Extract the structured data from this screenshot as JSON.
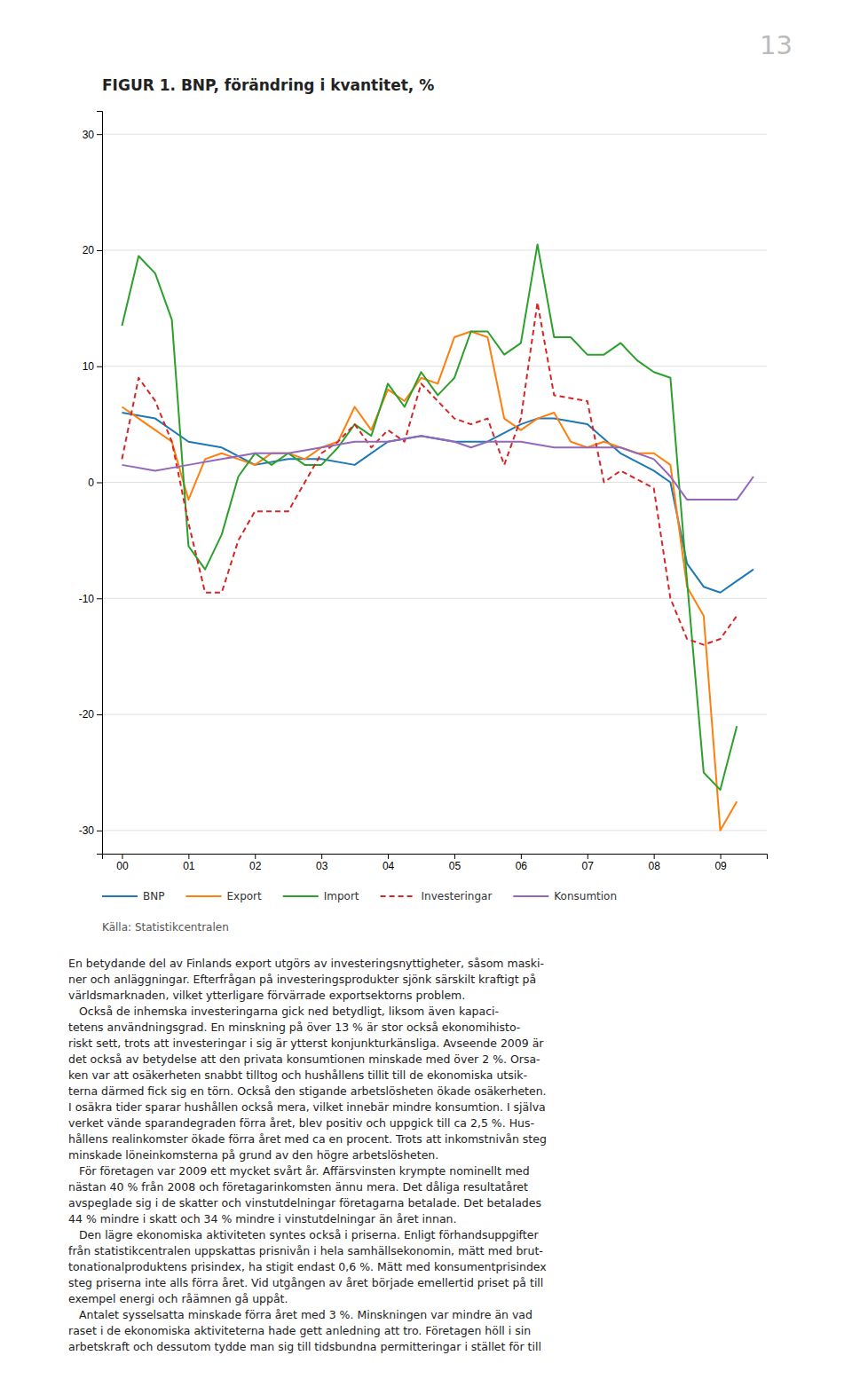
{
  "chart_data": {
    "type": "line",
    "title": "FIGUR 1. BNP, förändring i kvantitet, %",
    "source": "Källa: Statistikcentralen",
    "xlim": [
      -0.3,
      9.7
    ],
    "xticks": [
      {
        "value": 0,
        "label": "00"
      },
      {
        "value": 1,
        "label": "01"
      },
      {
        "value": 2,
        "label": "02"
      },
      {
        "value": 3,
        "label": "03"
      },
      {
        "value": 4,
        "label": "04"
      },
      {
        "value": 5,
        "label": "05"
      },
      {
        "value": 6,
        "label": "06"
      },
      {
        "value": 7,
        "label": "07"
      },
      {
        "value": 8,
        "label": "08"
      },
      {
        "value": 9,
        "label": "09"
      }
    ],
    "ylim": [
      -32,
      32
    ],
    "yticks": [
      -30,
      -20,
      -10,
      0,
      10,
      20,
      30
    ],
    "grid": true,
    "legend": "bottom",
    "series": [
      {
        "name": "BNP",
        "x": [
          0,
          0.5,
          1,
          1.5,
          2,
          2.5,
          3,
          3.5,
          4,
          4.5,
          5,
          5.5,
          6,
          6.25,
          6.5,
          7,
          7.5,
          8,
          8.25,
          8.5,
          8.75,
          9,
          9.25,
          9.5
        ],
        "values": [
          6.0,
          5.5,
          3.5,
          3.0,
          1.5,
          2.0,
          2.0,
          1.5,
          3.5,
          4.0,
          3.5,
          3.5,
          5.0,
          5.5,
          5.5,
          5.0,
          2.5,
          1.0,
          0.0,
          -7.0,
          -9.0,
          -9.5,
          -8.5,
          -7.5
        ]
      },
      {
        "name": "Export",
        "x": [
          0,
          0.25,
          0.5,
          0.75,
          1,
          1.25,
          1.5,
          1.75,
          2,
          2.25,
          2.5,
          2.75,
          3,
          3.25,
          3.5,
          3.75,
          4,
          4.25,
          4.5,
          4.75,
          5,
          5.25,
          5.5,
          5.75,
          6,
          6.25,
          6.5,
          6.75,
          7,
          7.25,
          7.5,
          7.75,
          8,
          8.25,
          8.5,
          8.75,
          9,
          9.25
        ],
        "values": [
          6.5,
          5.5,
          4.5,
          3.5,
          -1.5,
          2.0,
          2.5,
          2.0,
          1.5,
          2.5,
          2.5,
          2.0,
          3.0,
          3.5,
          6.5,
          4.5,
          8.0,
          7.0,
          9.0,
          8.5,
          12.5,
          13.0,
          12.5,
          5.5,
          4.5,
          5.5,
          6.0,
          3.5,
          3.0,
          3.5,
          3.0,
          2.5,
          2.5,
          1.5,
          -9.0,
          -11.5,
          -30.0,
          -27.5
        ]
      },
      {
        "name": "Import",
        "x": [
          0,
          0.25,
          0.5,
          0.75,
          1,
          1.25,
          1.5,
          1.75,
          2,
          2.25,
          2.5,
          2.75,
          3,
          3.25,
          3.5,
          3.75,
          4,
          4.25,
          4.5,
          4.75,
          5,
          5.25,
          5.5,
          5.75,
          6,
          6.25,
          6.5,
          6.75,
          7,
          7.25,
          7.5,
          7.75,
          8,
          8.25,
          8.5,
          8.75,
          9,
          9.25
        ],
        "values": [
          13.5,
          19.5,
          18.0,
          14.0,
          -5.5,
          -7.5,
          -4.5,
          0.5,
          2.5,
          1.5,
          2.5,
          1.5,
          1.5,
          3.0,
          5.0,
          4.0,
          8.5,
          6.5,
          9.5,
          7.5,
          9.0,
          13.0,
          13.0,
          11.0,
          12.0,
          20.5,
          12.5,
          12.5,
          11.0,
          11.0,
          12.0,
          10.5,
          9.5,
          9.0,
          -8.5,
          -25.0,
          -26.5,
          -21.0
        ]
      },
      {
        "name": "Investeringar",
        "line_style": "dashed",
        "x": [
          0,
          0.25,
          0.5,
          0.75,
          1,
          1.25,
          1.5,
          1.75,
          2,
          2.5,
          3,
          3.25,
          3.5,
          3.75,
          4,
          4.25,
          4.5,
          5,
          5.25,
          5.5,
          5.75,
          6,
          6.25,
          6.5,
          7,
          7.25,
          7.5,
          8,
          8.25,
          8.5,
          8.75,
          9,
          9.25
        ],
        "values": [
          2.0,
          9.0,
          7.0,
          3.5,
          -3.5,
          -9.5,
          -9.5,
          -5.0,
          -2.5,
          -2.5,
          2.5,
          3.5,
          5.0,
          3.0,
          4.5,
          3.5,
          8.5,
          5.5,
          5.0,
          5.5,
          1.5,
          5.5,
          15.5,
          7.5,
          7.0,
          0.0,
          1.0,
          -0.5,
          -10.0,
          -13.5,
          -14.0,
          -13.5,
          -11.5
        ]
      },
      {
        "name": "Konsumtion",
        "x": [
          0,
          0.5,
          1,
          1.5,
          2,
          2.5,
          3,
          3.5,
          4,
          4.5,
          5,
          5.25,
          5.5,
          6,
          6.5,
          7,
          7.5,
          8,
          8.25,
          8.5,
          9,
          9.25,
          9.5
        ],
        "values": [
          1.5,
          1.0,
          1.5,
          2.0,
          2.5,
          2.5,
          3.0,
          3.5,
          3.5,
          4.0,
          3.5,
          3.0,
          3.5,
          3.5,
          3.0,
          3.0,
          3.0,
          2.0,
          0.5,
          -1.5,
          -1.5,
          -1.5,
          0.5
        ]
      }
    ]
  },
  "page_number": "13",
  "text_body": [
    "En betydande del av Finlands export utgörs av investeringsnyttigheter, såsom maski-",
    "ner och anläggningar. Efterfrågan på investeringsprodukter sjönk särskilt kraftigt på",
    "världsmarknaden, vilket ytterligare förvärrade exportsektorns problem.",
    "   Också de inhemska investeringarna gick ned betydligt, liksom även kapaci-",
    "tetens användningsgrad. En minskning på över 13 % är stor också ekonomihisto-",
    "riskt sett, trots att investeringar i sig är ytterst konjunkturkänsliga. Avseende 2009 är",
    "det också av betydelse att den privata konsumtionen minskade med över 2 %. Orsa-",
    "ken var att osäkerheten snabbt tilltog och hushållens tillit till de ekonomiska utsik-",
    "terna därmed fick sig en törn. Också den stigande arbetslösheten ökade osäkerheten.",
    "I osäkra tider sparar hushållen också mera, vilket innebär mindre konsumtion. I själva",
    "verket vände sparandegraden förra året, blev positiv och uppgick till ca 2,5 %. Hus-",
    "hållens realinkomster ökade förra året med ca en procent. Trots att inkomstnivån steg",
    "minskade löneinkomsterna på grund av den högre arbetslösheten.",
    "   För företagen var 2009 ett mycket svårt år. Affärsvinsten krympte nominellt med",
    "nästan 40 % från 2008 och företagarinkomsten ännu mera. Det dåliga resultatåret",
    "avspeglade sig i de skatter och vinstutdelningar företagarna betalade. Det betalades",
    "44 % mindre i skatt och 34 % mindre i vinstutdelningar än året innan.",
    "   Den lägre ekonomiska aktiviteten syntes också i priserna. Enligt förhandsuppgifter",
    "från statistikcentralen uppskattas prisnivån i hela samhällsekonomin, mätt med brut-",
    "tonationalproduktens prisindex, ha stigit endast 0,6 %. Mätt med konsumentprisindex",
    "steg priserna inte alls förra året. Vid utgången av året började emellertid priset på till",
    "exempel energi och råämnen gå uppåt.",
    "   Antalet sysselsatta minskade förra året med 3 %. Minskningen var mindre än vad",
    "raset i de ekonomiska aktiviteterna hade gett anledning att tro. Företagen höll i sin",
    "arbetskraft och dessutom tydde man sig till tidsbundna permitteringar i stället för till"
  ]
}
